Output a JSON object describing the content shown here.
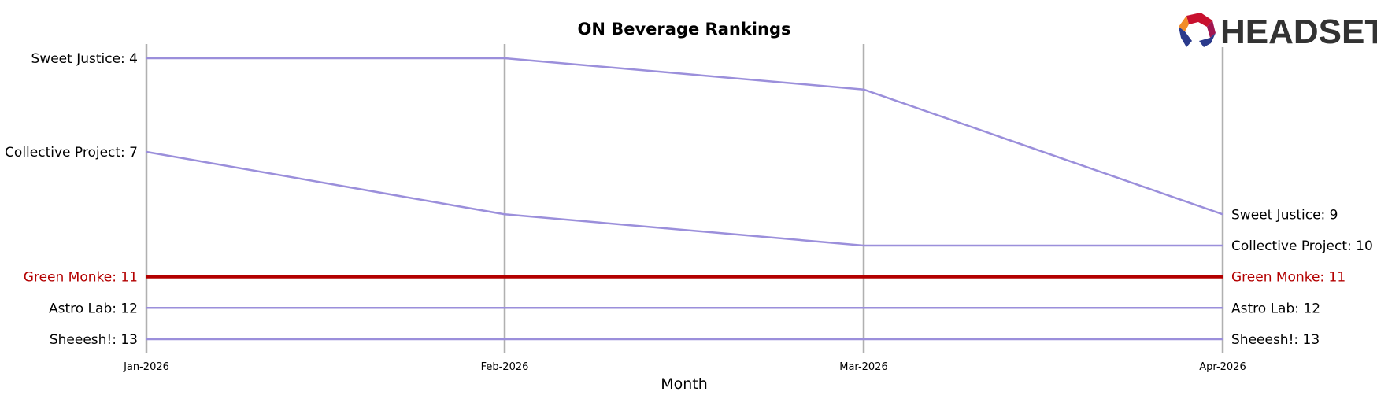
{
  "chart_data": {
    "type": "line",
    "title": "ON Beverage Rankings",
    "xlabel": "Month",
    "ylabel": "",
    "categories": [
      "Jan-2026",
      "Feb-2026",
      "Mar-2026",
      "Apr-2026"
    ],
    "y_inverted": true,
    "ylim": [
      4,
      13
    ],
    "grid": "vertical lines at each month",
    "series": [
      {
        "name": "Sweet Justice",
        "values": [
          4,
          4,
          5,
          9
        ],
        "color": "#9b8fdb",
        "highlight": false
      },
      {
        "name": "Collective Project",
        "values": [
          7,
          9,
          10,
          10
        ],
        "color": "#9b8fdb",
        "highlight": false
      },
      {
        "name": "Green Monke",
        "values": [
          11,
          11,
          11,
          11
        ],
        "color": "#b30000",
        "highlight": true
      },
      {
        "name": "Astro Lab",
        "values": [
          12,
          12,
          12,
          12
        ],
        "color": "#9b8fdb",
        "highlight": false
      },
      {
        "name": "Sheeesh!",
        "values": [
          13,
          13,
          13,
          13
        ],
        "color": "#9b8fdb",
        "highlight": false
      }
    ],
    "start_labels": [
      "Sweet Justice: 4",
      "Collective Project: 7",
      "Green Monke: 11",
      "Astro Lab: 12",
      "Sheeesh!: 13"
    ],
    "end_labels": [
      "Sweet Justice: 9",
      "Collective Project: 10",
      "Green Monke: 11",
      "Astro Lab: 12",
      "Sheeesh!: 13"
    ]
  },
  "logo": {
    "text": "HEADSET",
    "icon": "headset-hexagon-logo"
  },
  "colors": {
    "line": "#9b8fdb",
    "highlight": "#b30000",
    "grid": "#b0b0b0"
  }
}
